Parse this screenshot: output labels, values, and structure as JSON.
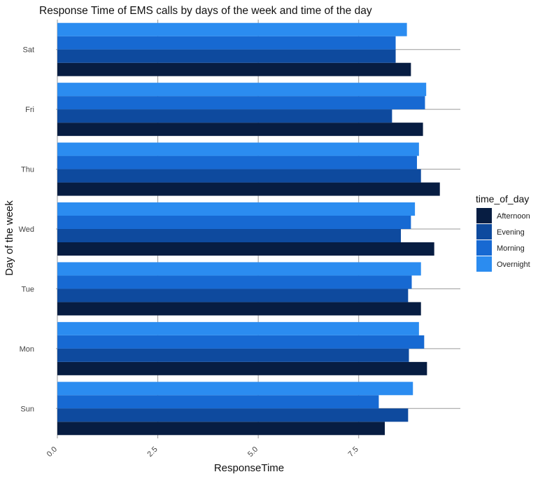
{
  "chart_data": {
    "type": "bar",
    "orientation": "horizontal",
    "title": "Response Time of EMS calls by days of the week and time of the day",
    "xlabel": "ResponseTime",
    "ylabel": "Day of the week",
    "xlim": [
      0,
      10
    ],
    "x_ticks": [
      "0.0",
      "2.5",
      "5.0",
      "7.5"
    ],
    "categories": [
      "Sun",
      "Mon",
      "Tue",
      "Wed",
      "Thu",
      "Fri",
      "Sat"
    ],
    "legend": {
      "title": "time_of_day",
      "position": "right"
    },
    "grid": true,
    "series": [
      {
        "name": "Afternoon",
        "color": "#071D42",
        "values": [
          8.15,
          9.2,
          9.05,
          9.38,
          9.52,
          9.1,
          8.8
        ]
      },
      {
        "name": "Evening",
        "color": "#0E4A9E",
        "values": [
          8.73,
          8.75,
          8.73,
          8.55,
          9.05,
          8.33,
          8.42
        ]
      },
      {
        "name": "Morning",
        "color": "#1769D2",
        "values": [
          8.0,
          9.13,
          8.82,
          8.8,
          8.95,
          9.15,
          8.42
        ]
      },
      {
        "name": "Overnight",
        "color": "#2B8CF0",
        "values": [
          8.85,
          9.0,
          9.05,
          8.9,
          9.0,
          9.18,
          8.7
        ]
      }
    ]
  }
}
